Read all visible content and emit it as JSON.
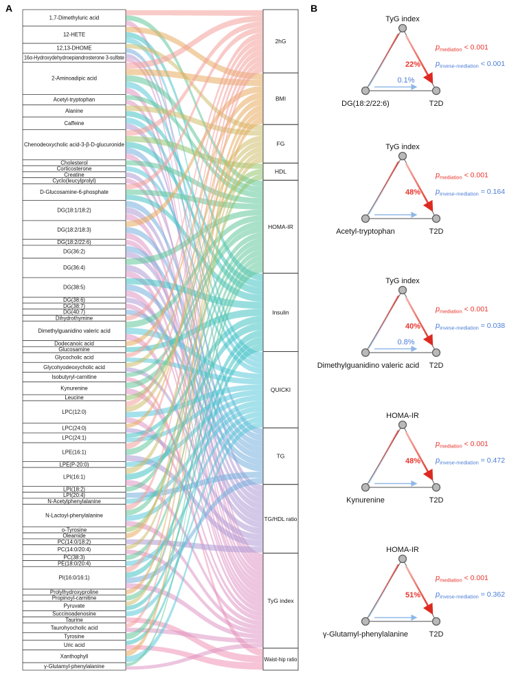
{
  "panels": {
    "a_label": "A",
    "b_label": "B"
  },
  "colors": {
    "red": "#e8342c",
    "blue": "#4a7cd6",
    "light_blue_arrow": "#8fb8e8",
    "triangle_edge": "#6f6f6f",
    "node_dot_fill": "#b9b9b9",
    "node_dot_stroke": "#5f5f5f",
    "box_border": "#3a3a3a",
    "text": "#111111"
  },
  "chart_data": [
    {
      "type": "sankey",
      "title": "Metabolite to clinical-index associations",
      "left_nodes": [
        {
          "name": "1,7-Dimethyluric acid",
          "size": 22
        },
        {
          "name": "12-HETE",
          "size": 23
        },
        {
          "name": "12,13-DHOME",
          "size": 13
        },
        {
          "name": "16α-Hydroxydehydroepiandrosterone 3-sulfate",
          "size": 12
        },
        {
          "name": "2-Aminoadipic acid",
          "size": 43
        },
        {
          "name": "Acetyl-tryptophan",
          "size": 14
        },
        {
          "name": "Alanine",
          "size": 16
        },
        {
          "name": "Caffeine",
          "size": 17
        },
        {
          "name": "Chenodeoxycholic acid-3-β-D-glucuronide",
          "size": 40
        },
        {
          "name": "Cholesterol",
          "size": 8
        },
        {
          "name": "Corticosterone",
          "size": 8
        },
        {
          "name": "Creatine",
          "size": 8
        },
        {
          "name": "Cyclo(leucylprolyl)",
          "size": 8
        },
        {
          "name": "D-Glucosamine-6-phosphate",
          "size": 22
        },
        {
          "name": "DG(18:1/18:2)",
          "size": 27
        },
        {
          "name": "DG(18:2/18:3)",
          "size": 25
        },
        {
          "name": "DG(18:2/22:6)",
          "size": 8
        },
        {
          "name": "DG(36:2)",
          "size": 17
        },
        {
          "name": "DG(36:4)",
          "size": 26
        },
        {
          "name": "DG(38:5)",
          "size": 26
        },
        {
          "name": "DG(38:6)",
          "size": 8
        },
        {
          "name": "DG(38:7)",
          "size": 8
        },
        {
          "name": "DG(40:7)",
          "size": 8
        },
        {
          "name": "Dihydrothymine",
          "size": 8
        },
        {
          "name": "Dimethylguanidino valeric acid",
          "size": 26
        },
        {
          "name": "Dodecanoic acid",
          "size": 8
        },
        {
          "name": "Glucosamine",
          "size": 8
        },
        {
          "name": "Glycocholic acid",
          "size": 13
        },
        {
          "name": "Glycohyodeoxycholic acid",
          "size": 13
        },
        {
          "name": "Isobutyryl-carnitine",
          "size": 13
        },
        {
          "name": "Kynurenine",
          "size": 17
        },
        {
          "name": "Leucine",
          "size": 8
        },
        {
          "name": "LPC(12:0)",
          "size": 30
        },
        {
          "name": "LPC(24:0)",
          "size": 13
        },
        {
          "name": "LPC(24:1)",
          "size": 13
        },
        {
          "name": "LPE(16:1)",
          "size": 25
        },
        {
          "name": "LPE(P-20:0)",
          "size": 8
        },
        {
          "name": "LPI(16:1)",
          "size": 25
        },
        {
          "name": "LPI(18:2)",
          "size": 8
        },
        {
          "name": "LPI(20:4)",
          "size": 8
        },
        {
          "name": "N-Acetylphenylalanine",
          "size": 8
        },
        {
          "name": "N-Lactoyl-phenylalanine",
          "size": 30
        },
        {
          "name": "o-Tyrosine",
          "size": 8
        },
        {
          "name": "Oleamide",
          "size": 8
        },
        {
          "name": "PC(14:0/18:2)",
          "size": 8
        },
        {
          "name": "PC(14:0/20:4)",
          "size": 13
        },
        {
          "name": "PC(38:3)",
          "size": 8
        },
        {
          "name": "PE(18:0/20:4)",
          "size": 8
        },
        {
          "name": "PI(16:0/16:1)",
          "size": 30
        },
        {
          "name": "Prolylhydroxyproline",
          "size": 8
        },
        {
          "name": "Propinoyl-carnitine",
          "size": 8
        },
        {
          "name": "Pyruvate",
          "size": 13
        },
        {
          "name": "Succinoadenosine",
          "size": 8
        },
        {
          "name": "Taurine",
          "size": 8
        },
        {
          "name": "Taurohyocholic acid",
          "size": 13
        },
        {
          "name": "Tyrosine",
          "size": 10
        },
        {
          "name": "Uric acid",
          "size": 13
        },
        {
          "name": "Xanthophyll",
          "size": 17
        },
        {
          "name": "γ-Glutamyl-phenylalanine",
          "size": 10
        }
      ],
      "right_nodes": [
        {
          "name": "2hG",
          "size": 92,
          "color": "#f2a19a"
        },
        {
          "name": "BMI",
          "size": 75,
          "color": "#e7ac60"
        },
        {
          "name": "FG",
          "size": 56,
          "color": "#cebd6b"
        },
        {
          "name": "HDL",
          "size": 25,
          "color": "#93c46f"
        },
        {
          "name": "HOMA-IR",
          "size": 135,
          "color": "#62c69b"
        },
        {
          "name": "Insulin",
          "size": 114,
          "color": "#45c3c3"
        },
        {
          "name": "QUICKI",
          "size": 111,
          "color": "#5bc8d9"
        },
        {
          "name": "TG",
          "size": 82,
          "color": "#77afdd"
        },
        {
          "name": "TG/HDL ratio",
          "size": 100,
          "color": "#ae9ad3"
        },
        {
          "name": "TyG index",
          "size": 138,
          "color": "#df95c4"
        },
        {
          "name": "Waist-hip ratio",
          "size": 32,
          "color": "#ef93b5"
        }
      ],
      "links": [
        [
          0,
          0
        ],
        [
          0,
          4
        ],
        [
          0,
          9
        ],
        [
          1,
          1
        ],
        [
          1,
          5
        ],
        [
          1,
          6
        ],
        [
          2,
          2
        ],
        [
          2,
          7
        ],
        [
          3,
          8
        ],
        [
          3,
          9
        ],
        [
          4,
          0
        ],
        [
          4,
          1
        ],
        [
          4,
          4
        ],
        [
          4,
          6
        ],
        [
          4,
          9
        ],
        [
          5,
          4
        ],
        [
          5,
          9
        ],
        [
          6,
          2
        ],
        [
          6,
          5
        ],
        [
          7,
          6
        ],
        [
          7,
          8
        ],
        [
          8,
          0
        ],
        [
          8,
          3
        ],
        [
          8,
          5
        ],
        [
          8,
          7
        ],
        [
          8,
          9
        ],
        [
          9,
          4
        ],
        [
          10,
          6
        ],
        [
          11,
          8
        ],
        [
          12,
          9
        ],
        [
          13,
          0
        ],
        [
          13,
          4
        ],
        [
          13,
          5
        ],
        [
          14,
          7
        ],
        [
          14,
          8
        ],
        [
          14,
          9
        ],
        [
          15,
          1
        ],
        [
          15,
          7
        ],
        [
          15,
          9
        ],
        [
          16,
          9
        ],
        [
          17,
          7
        ],
        [
          17,
          8
        ],
        [
          18,
          4
        ],
        [
          18,
          8
        ],
        [
          18,
          9
        ],
        [
          19,
          5
        ],
        [
          19,
          7
        ],
        [
          19,
          9
        ],
        [
          20,
          8
        ],
        [
          21,
          9
        ],
        [
          22,
          7
        ],
        [
          23,
          0
        ],
        [
          24,
          4
        ],
        [
          24,
          6
        ],
        [
          24,
          9
        ],
        [
          25,
          1
        ],
        [
          26,
          5
        ],
        [
          27,
          0
        ],
        [
          27,
          6
        ],
        [
          28,
          2
        ],
        [
          28,
          8
        ],
        [
          29,
          4
        ],
        [
          29,
          10
        ],
        [
          30,
          4
        ],
        [
          30,
          9
        ],
        [
          31,
          3
        ],
        [
          32,
          0
        ],
        [
          32,
          2
        ],
        [
          32,
          6
        ],
        [
          32,
          9
        ],
        [
          33,
          1
        ],
        [
          33,
          8
        ],
        [
          34,
          5
        ],
        [
          34,
          6
        ],
        [
          35,
          0
        ],
        [
          35,
          4
        ],
        [
          35,
          8
        ],
        [
          36,
          6
        ],
        [
          37,
          2
        ],
        [
          37,
          5
        ],
        [
          37,
          9
        ],
        [
          38,
          4
        ],
        [
          39,
          7
        ],
        [
          40,
          6
        ],
        [
          41,
          0
        ],
        [
          41,
          4
        ],
        [
          41,
          6
        ],
        [
          41,
          9
        ],
        [
          42,
          3
        ],
        [
          43,
          1
        ],
        [
          44,
          8
        ],
        [
          45,
          2
        ],
        [
          45,
          9
        ],
        [
          46,
          4
        ],
        [
          47,
          6
        ],
        [
          48,
          0
        ],
        [
          48,
          5
        ],
        [
          48,
          7
        ],
        [
          48,
          9
        ],
        [
          49,
          1
        ],
        [
          50,
          4
        ],
        [
          51,
          2
        ],
        [
          51,
          5
        ],
        [
          52,
          6
        ],
        [
          53,
          10
        ],
        [
          54,
          0
        ],
        [
          54,
          9
        ],
        [
          55,
          4
        ],
        [
          56,
          5
        ],
        [
          56,
          10
        ],
        [
          57,
          1
        ],
        [
          57,
          6
        ],
        [
          58,
          4
        ],
        [
          58,
          9
        ]
      ]
    },
    {
      "type": "mediation-triangles",
      "p_mediation_subscript": "mediation",
      "p_inverse_subscript": "invese-mediation",
      "p_symbol": "p",
      "items": [
        {
          "mediator": "TyG index",
          "exposure": "DG(18:2/22:6)",
          "outcome": "T2D",
          "mediated": "22%",
          "inverse_mediated": "0.1%",
          "p_mediation": "< 0.001",
          "p_inverse_mediation": "< 0.001"
        },
        {
          "mediator": "TyG index",
          "exposure": "Acetyl-tryptophan",
          "outcome": "T2D",
          "mediated": "48%",
          "inverse_mediated": null,
          "p_mediation": "< 0.001",
          "p_inverse_mediation": "= 0.164"
        },
        {
          "mediator": "TyG index",
          "exposure": "Dimethylguanidino valeric acid",
          "outcome": "T2D",
          "mediated": "40%",
          "inverse_mediated": "0.8%",
          "p_mediation": "< 0.001",
          "p_inverse_mediation": "= 0.038"
        },
        {
          "mediator": "HOMA-IR",
          "exposure": "Kynurenine",
          "outcome": "T2D",
          "mediated": "48%",
          "inverse_mediated": null,
          "p_mediation": "< 0.001",
          "p_inverse_mediation": "= 0.472"
        },
        {
          "mediator": "HOMA-IR",
          "exposure": "γ-Glutamyl-phenylalanine",
          "outcome": "T2D",
          "mediated": "51%",
          "inverse_mediated": null,
          "p_mediation": "< 0.001",
          "p_inverse_mediation": "= 0.362"
        }
      ]
    }
  ]
}
